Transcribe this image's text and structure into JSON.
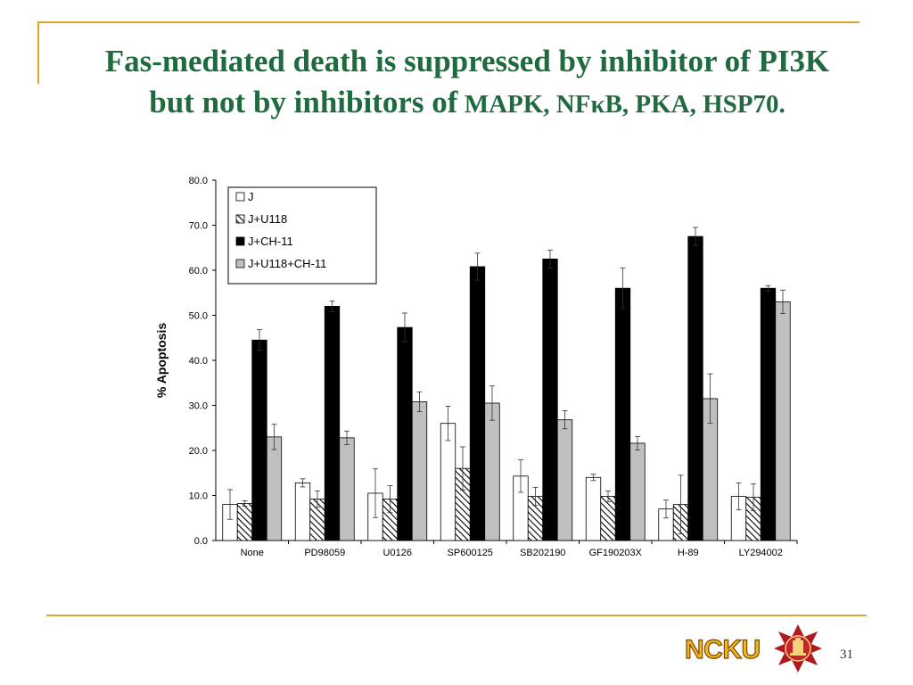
{
  "slide": {
    "title_line1": "Fas-mediated death is suppressed by inhibitor of PI3K",
    "title_line2_prefix": "but not by inhibitors of",
    "title_line2_rest": " MAPK, NFκB, PKA, HSP70.",
    "page_number": "31",
    "logo_text": "NCKU",
    "accent_color": "#d9a72b",
    "title_color": "#1f6b3f"
  },
  "chart_data": {
    "type": "bar",
    "ylabel": "% Apoptosis",
    "xlabel": "",
    "ylim": [
      0,
      80
    ],
    "yticks": [
      "0.0",
      "10.0",
      "20.0",
      "30.0",
      "40.0",
      "50.0",
      "60.0",
      "70.0",
      "80.0"
    ],
    "legend_position": "top-left",
    "categories": [
      "None",
      "PD98059",
      "U0126",
      "SP600125",
      "SB202190",
      "GF190203X",
      "H-89",
      "LY294002"
    ],
    "series": [
      {
        "name": "J",
        "fill": "white",
        "values": [
          8.0,
          12.8,
          10.5,
          26.0,
          14.3,
          14.0,
          7.0,
          9.8
        ],
        "errors": [
          3.3,
          0.9,
          5.4,
          3.8,
          3.6,
          0.7,
          2.0,
          3.0
        ]
      },
      {
        "name": "J+U118",
        "fill": "hatch",
        "values": [
          8.2,
          9.2,
          9.2,
          16.0,
          9.8,
          9.8,
          8.0,
          9.6
        ],
        "errors": [
          0.6,
          1.8,
          3.0,
          4.8,
          2.0,
          1.2,
          6.5,
          3.0
        ]
      },
      {
        "name": "J+CH-11",
        "fill": "black",
        "values": [
          44.5,
          52.0,
          47.3,
          60.8,
          62.5,
          56.0,
          67.5,
          56.0
        ],
        "errors": [
          2.3,
          1.2,
          3.2,
          3.0,
          2.0,
          4.5,
          2.0,
          0.6
        ]
      },
      {
        "name": "J+U118+CH-11",
        "fill": "gray",
        "values": [
          23.0,
          22.8,
          30.8,
          30.5,
          26.8,
          21.6,
          31.5,
          53.0
        ],
        "errors": [
          2.8,
          1.5,
          2.2,
          3.8,
          2.0,
          1.5,
          5.5,
          2.6
        ]
      }
    ]
  }
}
